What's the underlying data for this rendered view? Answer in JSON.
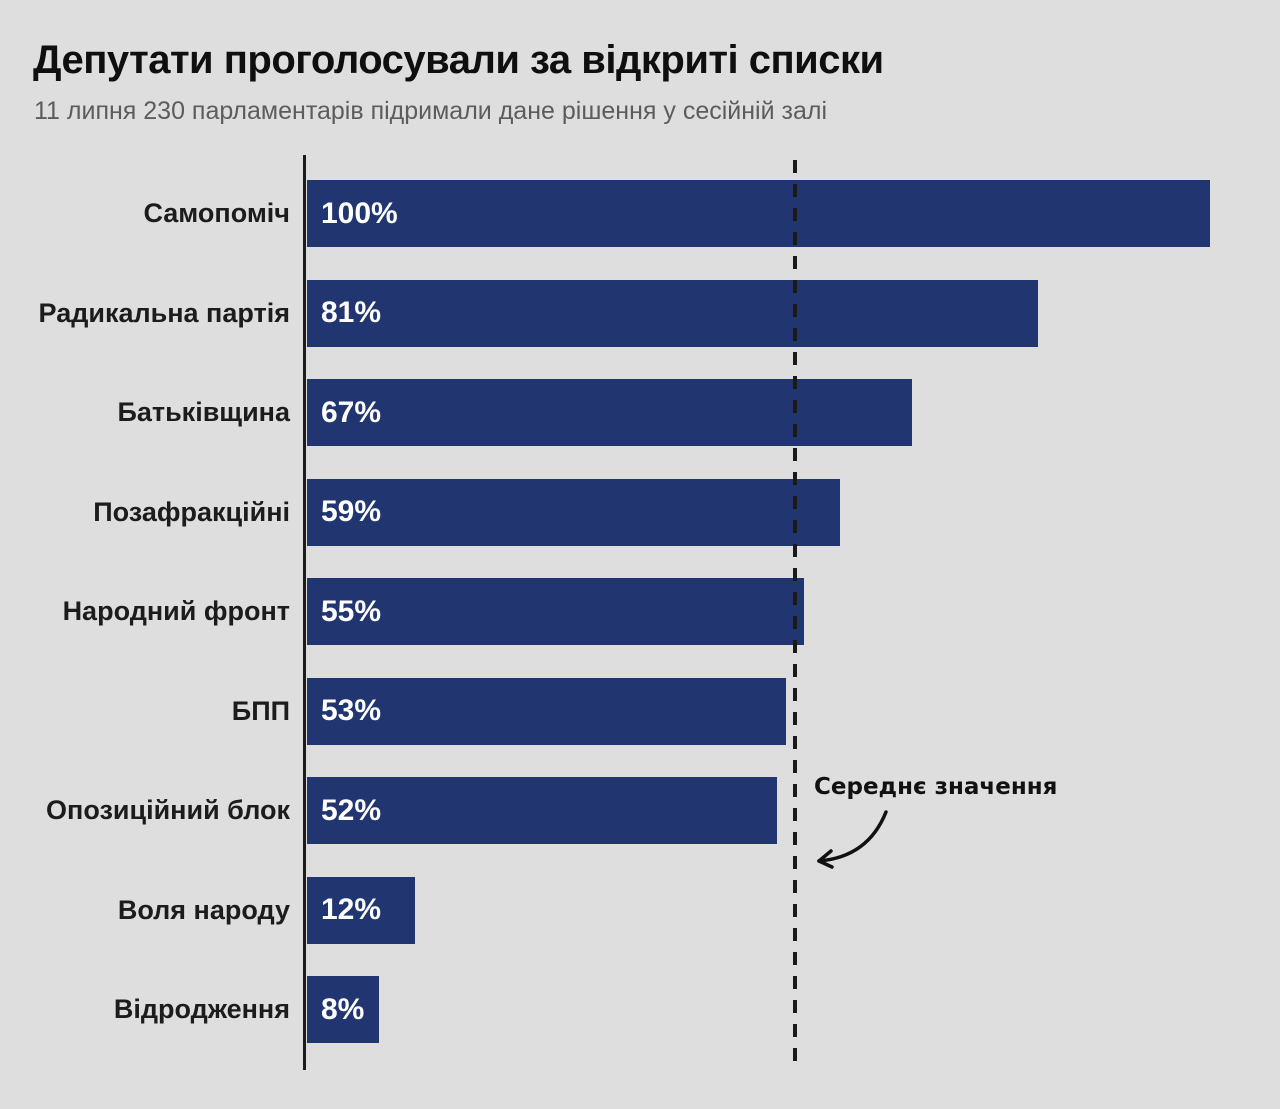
{
  "chart_data": {
    "type": "bar",
    "orientation": "horizontal",
    "title": "Депутати проголосували за відкриті списки",
    "subtitle": "11 липня 230 парламентарів підримали дане рішення у сесійній залі",
    "categories": [
      "Самопоміч",
      "Радикальна партія",
      "Батьківщина",
      "Позафракційні",
      "Народний фронт",
      "БПП",
      "Опозиційний блок",
      "Воля народу",
      "Відродження"
    ],
    "values": [
      100,
      81,
      67,
      59,
      55,
      53,
      52,
      12,
      8
    ],
    "value_labels": [
      "100%",
      "81%",
      "67%",
      "59%",
      "55%",
      "53%",
      "52%",
      "12%",
      "8%"
    ],
    "xlim": [
      0,
      100
    ],
    "grid": false,
    "legend": "none",
    "average_line": {
      "value": 54,
      "label": "Середнє значення"
    },
    "colors": {
      "background": "#dedede",
      "bar": "#213670",
      "value_label": "#ffffff",
      "category_label": "#1c1c1c",
      "axis": "#1c1c1c",
      "average_line": "#1a1a1a"
    }
  }
}
